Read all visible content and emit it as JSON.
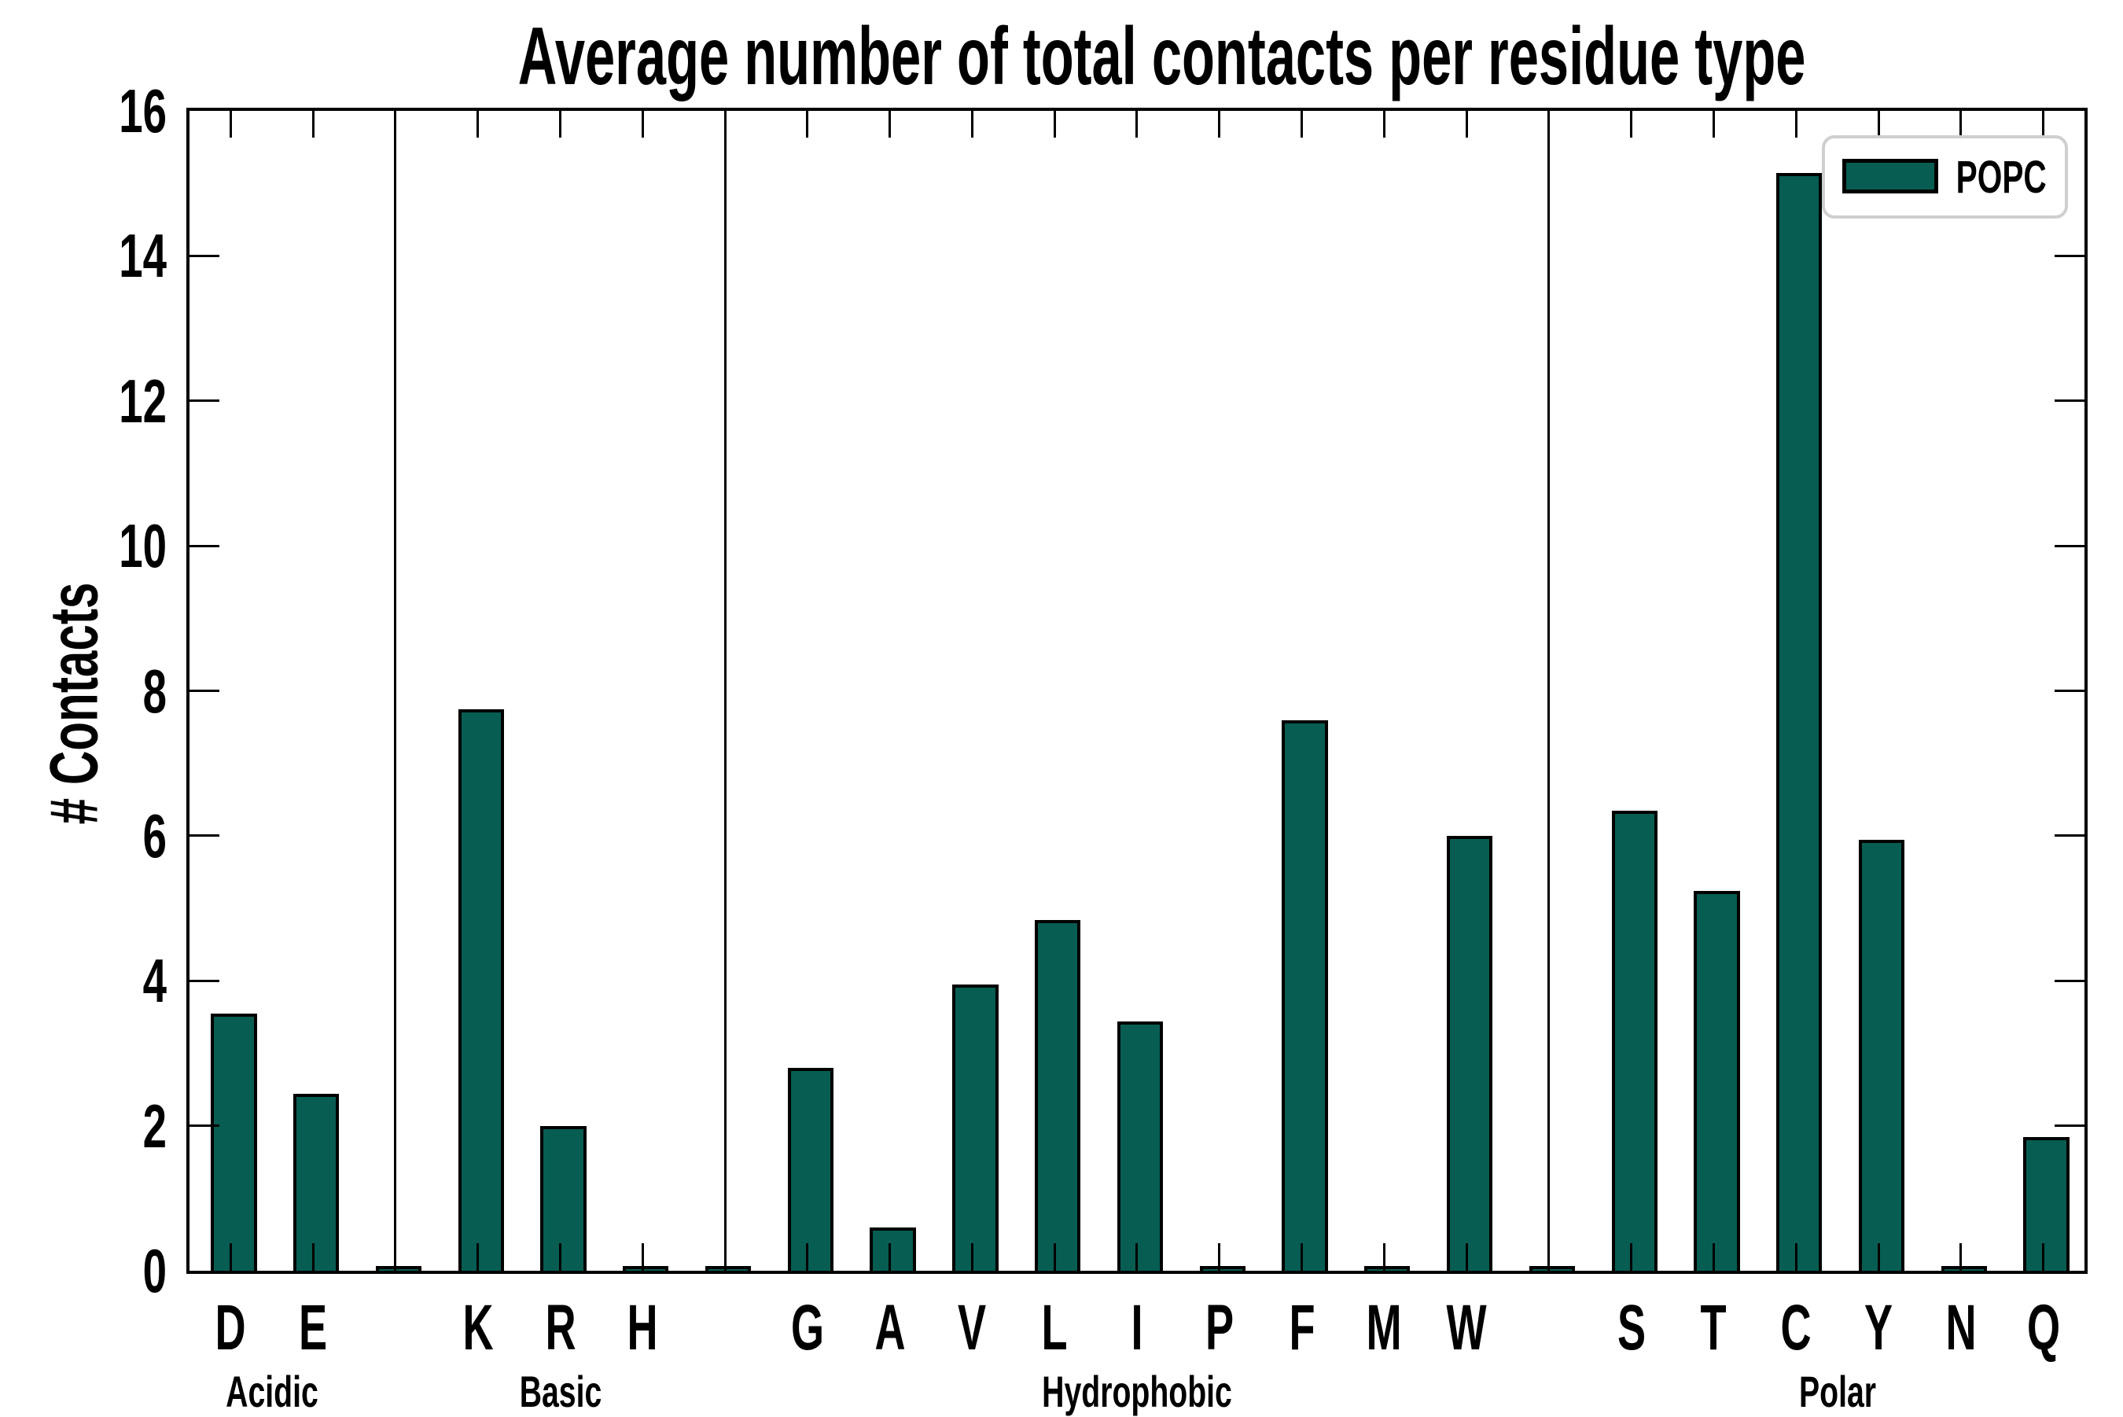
{
  "title": "Average number of total contacts per residue type",
  "ylabel": "# Contacts",
  "legend": {
    "label": "POPC"
  },
  "colors": {
    "bar_fill": "#075D52",
    "bar_edge": "#000000",
    "axis": "#000000",
    "legend_border": "#cfcfcf",
    "background": "#ffffff"
  },
  "chart_data": {
    "type": "bar",
    "title": "Average number of total contacts per residue type",
    "xlabel": "",
    "ylabel": "# Contacts",
    "ylim": [
      0,
      16
    ],
    "yticks": [
      0,
      2,
      4,
      6,
      8,
      10,
      12,
      14,
      16
    ],
    "grid": false,
    "legend_entries": [
      "POPC"
    ],
    "legend_position": "upper right",
    "bar_color": "#075D52",
    "groups": [
      {
        "label": "Acidic",
        "categories": [
          "D",
          "E"
        ],
        "values": [
          3.5,
          2.4
        ]
      },
      {
        "label": "Basic",
        "categories": [
          "K",
          "R",
          "H"
        ],
        "values": [
          7.7,
          1.95,
          0.02
        ]
      },
      {
        "label": "Hydrophobic",
        "categories": [
          "G",
          "A",
          "V",
          "L",
          "I",
          "P",
          "F",
          "M",
          "W"
        ],
        "values": [
          2.75,
          0.55,
          3.9,
          4.8,
          3.4,
          0.02,
          7.55,
          0.02,
          5.95
        ]
      },
      {
        "label": "Polar",
        "categories": [
          "S",
          "T",
          "C",
          "Y",
          "N",
          "Q"
        ],
        "values": [
          6.3,
          5.2,
          15.1,
          5.9,
          0.02,
          1.8
        ]
      }
    ],
    "categories": [
      "D",
      "E",
      "K",
      "R",
      "H",
      "G",
      "A",
      "V",
      "L",
      "I",
      "P",
      "F",
      "M",
      "W",
      "S",
      "T",
      "C",
      "Y",
      "N",
      "Q"
    ],
    "values": [
      3.5,
      2.4,
      7.7,
      1.95,
      0.02,
      2.75,
      0.55,
      3.9,
      4.8,
      3.4,
      0.02,
      7.55,
      0.02,
      5.95,
      6.3,
      5.2,
      15.1,
      5.9,
      0.02,
      1.8
    ],
    "group_divider_slots": true,
    "gap_slot_value": 0.02
  }
}
